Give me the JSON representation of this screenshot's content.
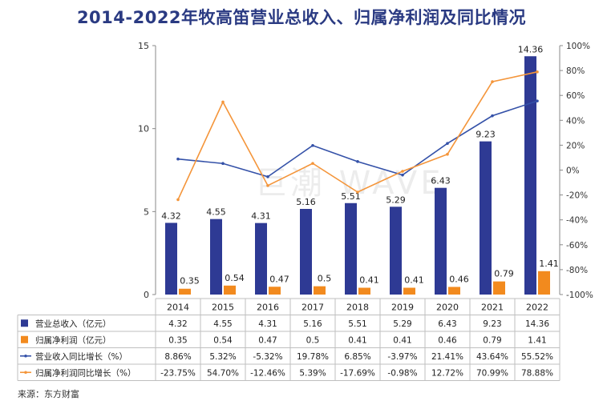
{
  "title": "2014-2022年牧高笛营业总收入、归属净利润及同比情况",
  "source": "来源：东方财富",
  "watermark": "巨潮 WAVE",
  "colors": {
    "revenue_bar": "#2e3a94",
    "profit_bar": "#f28a1e",
    "revenue_yoy_line": "#3451a8",
    "profit_yoy_line": "#f4953a",
    "grid": "#d9d9d9",
    "title": "#2a3a82"
  },
  "chart_data": {
    "type": "bar",
    "categories": [
      "2014",
      "2015",
      "2016",
      "2017",
      "2018",
      "2019",
      "2020",
      "2021",
      "2022"
    ],
    "y_left": {
      "lim": [
        0,
        15
      ],
      "ticks": [
        0,
        5,
        10,
        15
      ]
    },
    "y_right": {
      "lim": [
        -100,
        100
      ],
      "ticks": [
        -100,
        -80,
        -60,
        -40,
        -20,
        0,
        20,
        40,
        60,
        80,
        100
      ],
      "unit": "%"
    },
    "series": [
      {
        "name": "营业总收入（亿元）",
        "kind": "bar",
        "axis": "left",
        "values": [
          4.32,
          4.55,
          4.31,
          5.16,
          5.51,
          5.29,
          6.43,
          9.23,
          14.36
        ],
        "labels": [
          "4.32",
          "4.55",
          "4.31",
          "5.16",
          "5.51",
          "5.29",
          "6.43",
          "9.23",
          "14.36"
        ]
      },
      {
        "name": "归属净利润（亿元）",
        "kind": "bar",
        "axis": "left",
        "values": [
          0.35,
          0.54,
          0.47,
          0.5,
          0.41,
          0.41,
          0.46,
          0.79,
          1.41
        ],
        "labels": [
          "0.35",
          "0.54",
          "0.47",
          "0.5",
          "0.41",
          "0.41",
          "0.46",
          "0.79",
          "1.41"
        ]
      },
      {
        "name": "营业收入同比增长（%）",
        "kind": "line",
        "axis": "right",
        "values": [
          8.86,
          5.32,
          -5.32,
          19.78,
          6.85,
          -3.97,
          21.41,
          43.64,
          55.52
        ],
        "labels": [
          "8.86%",
          "5.32%",
          "-5.32%",
          "19.78%",
          "6.85%",
          "-3.97%",
          "21.41%",
          "43.64%",
          "55.52%"
        ]
      },
      {
        "name": "归属净利润同比增长（%）",
        "kind": "line",
        "axis": "right",
        "values": [
          -23.75,
          54.7,
          -12.46,
          5.39,
          -17.69,
          -0.98,
          12.72,
          70.99,
          78.88
        ],
        "labels": [
          "-23.75%",
          "54.70%",
          "-12.46%",
          "5.39%",
          "-17.69%",
          "-0.98%",
          "12.72%",
          "70.99%",
          "78.88%"
        ]
      }
    ],
    "table": true,
    "grid": false,
    "legend": "table-left"
  }
}
